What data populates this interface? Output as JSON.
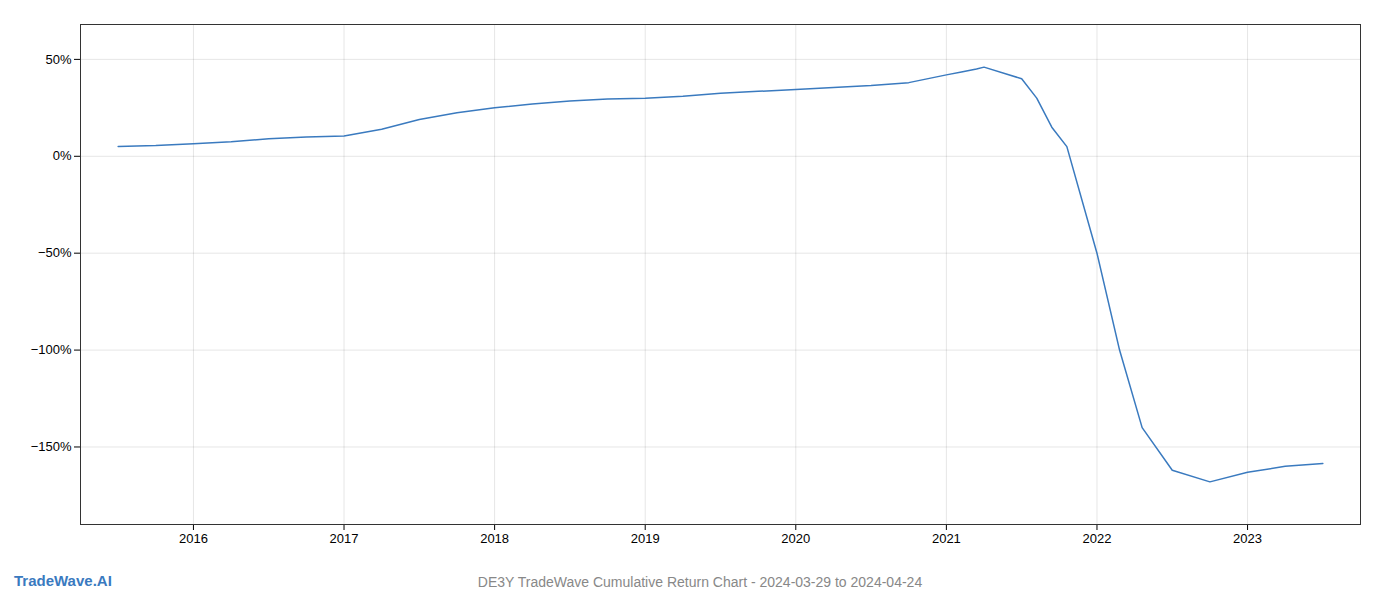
{
  "chart_data": {
    "type": "line",
    "title": "DE3Y TradeWave Cumulative Return Chart - 2024-03-29 to 2024-04-24",
    "annotations": [
      "TradeWave.AI"
    ],
    "color": "#3a7abf",
    "x": [
      2015.5,
      2015.75,
      2016.0,
      2016.25,
      2016.5,
      2016.75,
      2017.0,
      2017.25,
      2017.5,
      2017.75,
      2018.0,
      2018.25,
      2018.5,
      2018.75,
      2019.0,
      2019.25,
      2019.5,
      2019.75,
      2020.0,
      2020.25,
      2020.5,
      2020.75,
      2021.0,
      2021.1,
      2021.2,
      2021.25,
      2021.5,
      2021.6,
      2021.7,
      2021.8,
      2022.0,
      2022.15,
      2022.3,
      2022.5,
      2022.75,
      2023.0,
      2023.25,
      2023.5
    ],
    "values": [
      5.0,
      5.5,
      6.5,
      7.5,
      9.0,
      10.0,
      10.5,
      14.0,
      19.0,
      22.5,
      25.0,
      27.0,
      28.5,
      29.5,
      30.0,
      31.0,
      32.5,
      33.5,
      34.5,
      35.5,
      36.5,
      38.0,
      42.0,
      43.5,
      45.0,
      46.0,
      40.0,
      30.0,
      15.0,
      5.0,
      -50.0,
      -100.0,
      -140.0,
      -162.0,
      -168.0,
      -163.0,
      -160.0,
      -158.5
    ],
    "xlim": [
      2015.25,
      2023.75
    ],
    "ylim": [
      -190,
      68
    ],
    "xticks": [
      2016,
      2017,
      2018,
      2019,
      2020,
      2021,
      2022,
      2023
    ],
    "yticks": [
      {
        "value": 50,
        "label": "50%"
      },
      {
        "value": 0,
        "label": "0%"
      },
      {
        "value": -50,
        "label": "−50%"
      },
      {
        "value": -100,
        "label": "−100%"
      },
      {
        "value": -150,
        "label": "−150%"
      }
    ],
    "grid": true
  }
}
